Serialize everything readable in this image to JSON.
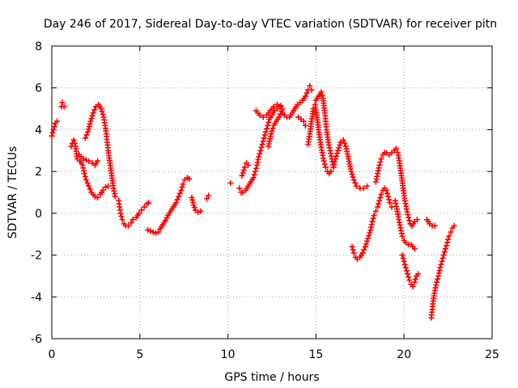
{
  "chart_data": {
    "type": "scatter",
    "title": "Day 246 of 2017, Sidereal Day-to-day VTEC variation (SDTVAR) for receiver pitn",
    "xlabel": "GPS time / hours",
    "ylabel": "SDTVAR / TECUs",
    "xlim": [
      0,
      25
    ],
    "ylim": [
      -6,
      8
    ],
    "xticks": [
      0,
      5,
      10,
      15,
      20,
      25
    ],
    "yticks": [
      -6,
      -4,
      -2,
      0,
      2,
      4,
      6,
      8
    ],
    "grid": true,
    "marker": "+",
    "color": "#ff0000",
    "series": [
      {
        "name": "a1",
        "points": [
          [
            0,
            3.7
          ],
          [
            0.1,
            4.0
          ],
          [
            0.2,
            4.3
          ],
          [
            0.3,
            4.4
          ]
        ]
      },
      {
        "name": "a2",
        "points": [
          [
            0.55,
            5.1
          ],
          [
            0.6,
            5.3
          ],
          [
            0.7,
            5.1
          ]
        ]
      },
      {
        "name": "a3",
        "points": [
          [
            1.1,
            3.2
          ],
          [
            1.25,
            3.5
          ],
          [
            1.35,
            3.2
          ],
          [
            1.45,
            2.6
          ],
          [
            1.6,
            2.5
          ],
          [
            1.75,
            2.3
          ],
          [
            1.85,
            1.9
          ],
          [
            1.95,
            1.6
          ],
          [
            2.1,
            1.3
          ],
          [
            2.25,
            1.0
          ],
          [
            2.45,
            0.8
          ],
          [
            2.6,
            0.75
          ],
          [
            2.75,
            0.9
          ],
          [
            2.9,
            1.1
          ],
          [
            3.05,
            1.25
          ],
          [
            3.2,
            1.3
          ]
        ]
      },
      {
        "name": "a4",
        "points": [
          [
            1.55,
            2.8
          ],
          [
            1.8,
            2.6
          ],
          [
            2.1,
            2.5
          ],
          [
            2.3,
            2.4
          ],
          [
            2.45,
            2.3
          ],
          [
            2.6,
            2.5
          ]
        ]
      },
      {
        "name": "a5",
        "points": [
          [
            1.9,
            3.6
          ],
          [
            2.05,
            3.9
          ],
          [
            2.2,
            4.4
          ],
          [
            2.35,
            4.8
          ],
          [
            2.5,
            5.1
          ],
          [
            2.65,
            5.2
          ],
          [
            2.8,
            5.0
          ],
          [
            2.95,
            4.6
          ],
          [
            3.1,
            3.8
          ],
          [
            3.2,
            3.0
          ],
          [
            3.3,
            2.4
          ],
          [
            3.4,
            1.8
          ],
          [
            3.5,
            1.2
          ],
          [
            3.6,
            0.8
          ]
        ]
      },
      {
        "name": "a6",
        "points": [
          [
            3.8,
            0.6
          ],
          [
            3.85,
            0.3
          ],
          [
            3.9,
            0
          ],
          [
            4.0,
            -0.3
          ],
          [
            4.1,
            -0.5
          ],
          [
            4.2,
            -0.6
          ],
          [
            4.35,
            -0.6
          ],
          [
            4.5,
            -0.45
          ],
          [
            4.6,
            -0.3
          ]
        ]
      },
      {
        "name": "a7",
        "points": [
          [
            4.8,
            -0.2
          ],
          [
            4.95,
            0
          ],
          [
            5.1,
            0.15
          ],
          [
            5.25,
            0.3
          ],
          [
            5.4,
            0.45
          ],
          [
            5.5,
            0.5
          ]
        ]
      },
      {
        "name": "a8",
        "points": [
          [
            5.45,
            -0.8
          ],
          [
            5.6,
            -0.85
          ],
          [
            5.75,
            -0.9
          ],
          [
            5.9,
            -0.95
          ],
          [
            6.05,
            -0.9
          ],
          [
            6.15,
            -0.75
          ],
          [
            6.3,
            -0.55
          ],
          [
            6.45,
            -0.35
          ],
          [
            6.6,
            -0.1
          ],
          [
            6.75,
            0.1
          ],
          [
            6.9,
            0.3
          ],
          [
            7.05,
            0.5
          ],
          [
            7.2,
            0.8
          ],
          [
            7.35,
            1.1
          ],
          [
            7.45,
            1.4
          ],
          [
            7.55,
            1.6
          ],
          [
            7.7,
            1.7
          ],
          [
            7.8,
            1.65
          ]
        ]
      },
      {
        "name": "a9",
        "points": [
          [
            7.95,
            0.75
          ],
          [
            8.05,
            0.4
          ],
          [
            8.15,
            0.15
          ],
          [
            8.3,
            0.05
          ],
          [
            8.45,
            0.1
          ]
        ]
      },
      {
        "name": "a10",
        "points": [
          [
            8.8,
            0.7
          ],
          [
            8.9,
            0.85
          ]
        ]
      },
      {
        "name": "b1",
        "points": [
          [
            10.15,
            1.45
          ]
        ]
      },
      {
        "name": "b2",
        "points": [
          [
            10.65,
            1.2
          ],
          [
            10.75,
            1.0
          ],
          [
            10.85,
            1.0
          ],
          [
            11.0,
            1.1
          ],
          [
            11.15,
            1.3
          ],
          [
            11.3,
            1.5
          ],
          [
            11.45,
            1.7
          ],
          [
            11.55,
            2.0
          ],
          [
            11.65,
            2.3
          ],
          [
            11.75,
            2.7
          ],
          [
            11.85,
            3.0
          ],
          [
            11.95,
            3.3
          ],
          [
            12.05,
            3.6
          ],
          [
            12.15,
            3.9
          ],
          [
            12.25,
            4.2
          ],
          [
            12.35,
            4.5
          ],
          [
            12.5,
            4.7
          ],
          [
            12.65,
            4.9
          ],
          [
            12.8,
            5.0
          ],
          [
            12.95,
            5.1
          ],
          [
            13.1,
            5.0
          ]
        ]
      },
      {
        "name": "b3",
        "points": [
          [
            10.8,
            1.8
          ],
          [
            10.95,
            2.2
          ],
          [
            11.05,
            2.4
          ],
          [
            11.15,
            2.3
          ]
        ]
      },
      {
        "name": "b4",
        "points": [
          [
            11.6,
            4.9
          ],
          [
            11.8,
            4.7
          ],
          [
            12.0,
            4.6
          ],
          [
            12.2,
            4.7
          ],
          [
            12.4,
            4.9
          ],
          [
            12.6,
            5.1
          ],
          [
            12.8,
            5.2
          ],
          [
            13.0,
            5.15
          ]
        ]
      },
      {
        "name": "b5",
        "points": [
          [
            12.3,
            3.2
          ],
          [
            12.45,
            3.8
          ],
          [
            12.6,
            4.2
          ],
          [
            12.75,
            4.4
          ],
          [
            12.9,
            4.6
          ],
          [
            13.05,
            4.9
          ],
          [
            13.2,
            4.7
          ],
          [
            13.35,
            4.6
          ],
          [
            13.5,
            4.6
          ],
          [
            13.65,
            4.8
          ],
          [
            13.8,
            5.0
          ],
          [
            13.95,
            5.2
          ],
          [
            14.1,
            5.3
          ],
          [
            14.25,
            5.4
          ],
          [
            14.4,
            5.6
          ],
          [
            14.55,
            5.9
          ],
          [
            14.65,
            6.1
          ],
          [
            14.75,
            5.9
          ]
        ]
      },
      {
        "name": "b6",
        "points": [
          [
            14.0,
            4.6
          ],
          [
            14.15,
            4.5
          ],
          [
            14.3,
            4.4
          ],
          [
            14.4,
            4.2
          ]
        ]
      },
      {
        "name": "b7",
        "points": [
          [
            14.55,
            3.3
          ],
          [
            14.65,
            3.8
          ],
          [
            14.75,
            4.4
          ],
          [
            14.85,
            5.0
          ],
          [
            14.95,
            5.2
          ],
          [
            15.05,
            4.7
          ],
          [
            15.15,
            4.0
          ],
          [
            15.25,
            3.4
          ],
          [
            15.35,
            2.9
          ],
          [
            15.45,
            2.5
          ],
          [
            15.55,
            2.2
          ],
          [
            15.65,
            2.0
          ],
          [
            15.75,
            1.9
          ],
          [
            15.85,
            2.0
          ]
        ]
      },
      {
        "name": "b8",
        "points": [
          [
            15.0,
            5.4
          ],
          [
            15.15,
            5.6
          ],
          [
            15.3,
            5.8
          ],
          [
            15.4,
            5.5
          ],
          [
            15.5,
            4.8
          ],
          [
            15.6,
            4.0
          ],
          [
            15.7,
            3.4
          ],
          [
            15.8,
            3.0
          ],
          [
            15.9,
            2.6
          ],
          [
            16.0,
            2.2
          ],
          [
            16.1,
            2.6
          ],
          [
            16.25,
            3.0
          ],
          [
            16.4,
            3.4
          ],
          [
            16.55,
            3.5
          ],
          [
            16.7,
            3.2
          ],
          [
            16.85,
            2.6
          ],
          [
            17.0,
            2.0
          ],
          [
            17.15,
            1.6
          ],
          [
            17.3,
            1.3
          ],
          [
            17.5,
            1.2
          ],
          [
            17.7,
            1.2
          ],
          [
            17.9,
            1.3
          ]
        ]
      },
      {
        "name": "b9",
        "points": [
          [
            17.05,
            -1.6
          ],
          [
            17.15,
            -1.9
          ],
          [
            17.25,
            -2.1
          ],
          [
            17.35,
            -2.2
          ],
          [
            17.5,
            -2.1
          ],
          [
            17.65,
            -1.9
          ],
          [
            17.8,
            -1.6
          ],
          [
            17.95,
            -1.2
          ],
          [
            18.1,
            -0.8
          ],
          [
            18.2,
            -0.4
          ],
          [
            18.3,
            -0.1
          ],
          [
            18.4,
            0.1
          ],
          [
            18.5,
            0.3
          ],
          [
            18.6,
            0.6
          ],
          [
            18.7,
            0.9
          ],
          [
            18.8,
            1.1
          ],
          [
            18.9,
            1.2
          ],
          [
            19.0,
            1.1
          ],
          [
            19.1,
            0.8
          ],
          [
            19.2,
            0.5
          ],
          [
            19.3,
            0.3
          ]
        ]
      },
      {
        "name": "b10",
        "points": [
          [
            18.4,
            1.5
          ],
          [
            18.5,
            1.9
          ],
          [
            18.6,
            2.3
          ],
          [
            18.7,
            2.6
          ],
          [
            18.8,
            2.8
          ],
          [
            18.9,
            2.9
          ],
          [
            19.0,
            2.9
          ],
          [
            19.15,
            2.8
          ],
          [
            19.3,
            2.9
          ],
          [
            19.45,
            3.0
          ],
          [
            19.55,
            3.1
          ],
          [
            19.65,
            2.9
          ],
          [
            19.75,
            2.4
          ],
          [
            19.85,
            1.8
          ],
          [
            19.95,
            1.2
          ],
          [
            20.05,
            0.6
          ],
          [
            20.15,
            0.2
          ],
          [
            20.25,
            -0.2
          ],
          [
            20.35,
            -0.5
          ],
          [
            20.45,
            -0.6
          ],
          [
            20.6,
            -0.4
          ],
          [
            20.75,
            -0.3
          ]
        ]
      },
      {
        "name": "b11",
        "points": [
          [
            19.5,
            0.6
          ],
          [
            19.6,
            0.2
          ],
          [
            19.7,
            -0.3
          ],
          [
            19.8,
            -0.7
          ],
          [
            19.9,
            -1.1
          ],
          [
            20.0,
            -1.3
          ],
          [
            20.1,
            -1.4
          ],
          [
            20.25,
            -1.5
          ],
          [
            20.4,
            -1.5
          ],
          [
            20.5,
            -1.6
          ],
          [
            20.6,
            -1.7
          ]
        ]
      },
      {
        "name": "b12",
        "points": [
          [
            19.9,
            -2.0
          ],
          [
            20.0,
            -2.3
          ],
          [
            20.1,
            -2.6
          ],
          [
            20.2,
            -2.9
          ],
          [
            20.3,
            -3.2
          ],
          [
            20.4,
            -3.4
          ],
          [
            20.5,
            -3.5
          ],
          [
            20.6,
            -3.3
          ],
          [
            20.7,
            -3.0
          ],
          [
            20.8,
            -2.9
          ]
        ]
      },
      {
        "name": "b13",
        "points": [
          [
            21.3,
            -0.3
          ],
          [
            21.45,
            -0.5
          ],
          [
            21.6,
            -0.6
          ],
          [
            21.75,
            -0.6
          ]
        ]
      },
      {
        "name": "b14",
        "points": [
          [
            21.55,
            -5.0
          ],
          [
            21.6,
            -4.6
          ],
          [
            21.65,
            -4.2
          ],
          [
            21.75,
            -3.7
          ],
          [
            21.85,
            -3.3
          ],
          [
            21.95,
            -3.0
          ],
          [
            22.05,
            -2.6
          ],
          [
            22.15,
            -2.3
          ],
          [
            22.25,
            -2.0
          ],
          [
            22.35,
            -1.7
          ],
          [
            22.45,
            -1.4
          ],
          [
            22.55,
            -1.1
          ],
          [
            22.65,
            -0.9
          ],
          [
            22.75,
            -0.7
          ],
          [
            22.85,
            -0.6
          ]
        ]
      }
    ]
  }
}
